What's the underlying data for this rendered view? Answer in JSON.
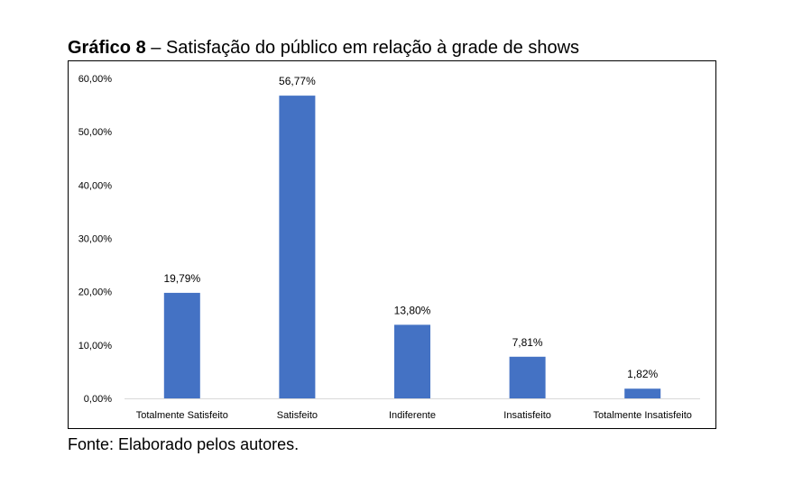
{
  "caption": {
    "label": "Gráfico 8",
    "separator": " – ",
    "text": "Satisfação do público em relação à grade de shows"
  },
  "source": "Fonte: Elaborado pelos autores.",
  "colors": {
    "bar": "#4472C4",
    "axis": "#D9D9D9",
    "text": "#000000"
  },
  "chart_data": {
    "type": "bar",
    "title": "",
    "xlabel": "",
    "ylabel": "",
    "categories": [
      "Totalmente Satisfeito",
      "Satisfeito",
      "Indiferente",
      "Insatisfeito",
      "Totalmente Insatisfeito"
    ],
    "values": [
      19.79,
      56.77,
      13.8,
      7.81,
      1.82
    ],
    "data_labels": [
      "19,79%",
      "56,77%",
      "13,80%",
      "7,81%",
      "1,82%"
    ],
    "ylim": [
      0,
      60
    ],
    "yticks": [
      0,
      10,
      20,
      30,
      40,
      50,
      60
    ],
    "ytick_labels": [
      "0,00%",
      "10,00%",
      "20,00%",
      "30,00%",
      "40,00%",
      "50,00%",
      "60,00%"
    ],
    "grid": false,
    "legend": "none"
  }
}
